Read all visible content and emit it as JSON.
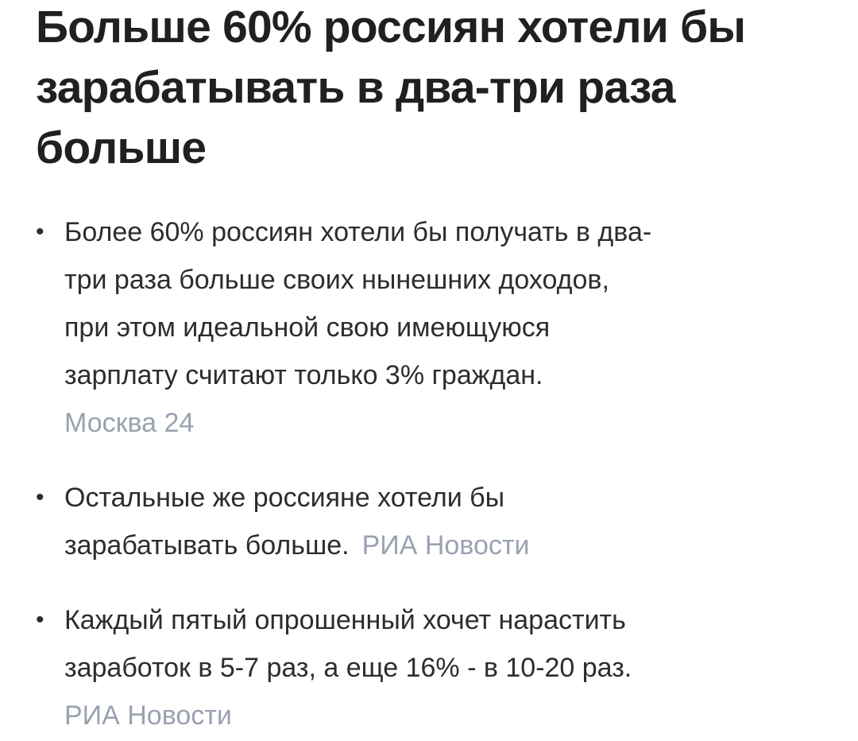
{
  "colors": {
    "background": "#ffffff",
    "headline_text": "#21201f",
    "body_text": "#2e2d2b",
    "source_link": "#9aa1b0"
  },
  "article": {
    "bullet_glyph": "•",
    "title": "Больше 60% россиян хотели бы\nзарабатывать в два-три раза\nбольше",
    "bullets": [
      {
        "text": "Более 60% россиян хотели бы получать в два-\nтри раза больше своих нынешних доходов,\nпри этом идеальной свою имеющуюся\nзарплату считают только 3% граждан.",
        "source": "Москва 24"
      },
      {
        "text": "Остальные же россияне хотели бы\nзарабатывать больше.",
        "source": "РИА Новости"
      },
      {
        "text": "Каждый пятый опрошенный хочет нарастить\nзаработок в 5-7 раз, а еще 16% - в 10-20 раз.",
        "source": "РИА Новости"
      }
    ]
  }
}
